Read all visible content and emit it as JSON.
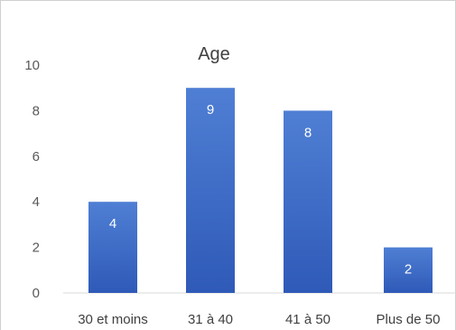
{
  "chart_data": {
    "type": "bar",
    "title": "Age",
    "categories": [
      "30 et moins",
      "31 à 40",
      "41 à 50",
      "Plus de 50"
    ],
    "values": [
      4,
      9,
      8,
      2
    ],
    "data_labels": [
      "4",
      "9",
      "8",
      "2"
    ],
    "yticks": [
      "0",
      "2",
      "4",
      "6",
      "8",
      "10"
    ],
    "ylim": [
      0,
      10
    ],
    "xlabel": "",
    "ylabel": "",
    "grid": false,
    "legend": "none",
    "bar_color": "#4472c4",
    "bar_color_top": "#4f7fd4",
    "bar_color_bottom": "#2f5ab8"
  }
}
